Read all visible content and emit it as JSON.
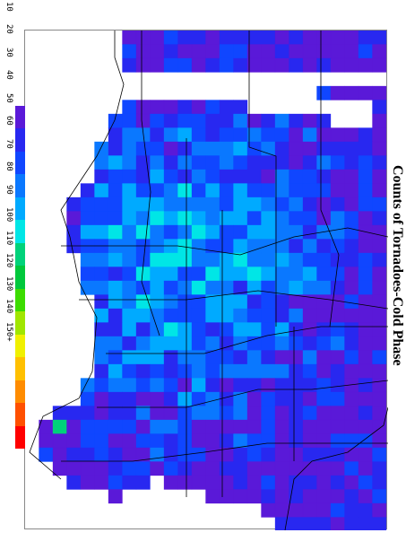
{
  "title": "Counts of Tornadoes-Cold Phase",
  "legend": {
    "ticks": [
      "10",
      "20",
      "30",
      "40",
      "50",
      "60",
      "70",
      "80",
      "90",
      "100",
      "110",
      "120",
      "130",
      "140",
      "150+"
    ],
    "colors": [
      "#5a19d8",
      "#2828f0",
      "#1046ff",
      "#0a78ff",
      "#00aaff",
      "#00e6e6",
      "#00d27a",
      "#00c83c",
      "#3cdc00",
      "#a0e600",
      "#f0f000",
      "#ffc000",
      "#ff8c00",
      "#ff5000",
      "#ff0000"
    ]
  },
  "map": {
    "cell_fill_default": "#5a19d8",
    "border_color": "#000000"
  }
}
